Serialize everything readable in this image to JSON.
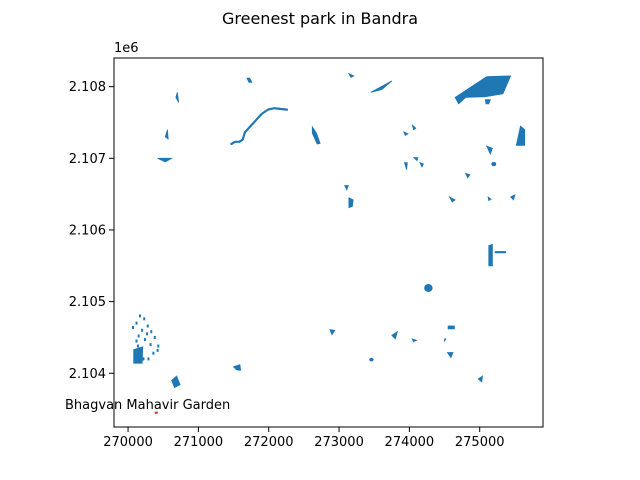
{
  "figure": {
    "title": "Greenest park in Bandra",
    "offset_label": "1e6"
  },
  "colors": {
    "park_fill": "#1f77b4",
    "highlight": "#d62728",
    "axes": "#000000",
    "background": "#ffffff"
  },
  "chart_data": {
    "type": "map",
    "title": "Greenest park in Bandra",
    "crs_units": "metres",
    "xlim": [
      269800,
      275900
    ],
    "ylim": [
      2103250,
      2108400
    ],
    "x_ticks": [
      270000,
      271000,
      272000,
      273000,
      274000,
      275000
    ],
    "x_tick_labels": [
      "270000",
      "271000",
      "272000",
      "273000",
      "274000",
      "275000"
    ],
    "y_ticks": [
      2104000,
      2105000,
      2106000,
      2107000,
      2108000
    ],
    "y_tick_labels": [
      "2.104",
      "2.105",
      "2.106",
      "2.107",
      "2.108"
    ],
    "y_offset_label": "1e6",
    "annotation": {
      "text": "Bhagvan Mahavir Garden",
      "x": 270400,
      "y": 2103450
    },
    "parks": [
      {
        "type": "poly",
        "pts": [
          [
            274650,
            2107850
          ],
          [
            275100,
            2108140
          ],
          [
            275440,
            2108150
          ],
          [
            275330,
            2107900
          ],
          [
            275080,
            2107860
          ],
          [
            274800,
            2107850
          ],
          [
            274700,
            2107760
          ]
        ]
      },
      {
        "type": "poly",
        "pts": [
          [
            273450,
            2107920
          ],
          [
            273750,
            2108080
          ],
          [
            273610,
            2107960
          ]
        ]
      },
      {
        "type": "poly",
        "pts": [
          [
            275520,
            2107180
          ],
          [
            275580,
            2107450
          ],
          [
            275640,
            2107400
          ],
          [
            275640,
            2107180
          ]
        ]
      },
      {
        "type": "poly",
        "pts": [
          [
            275080,
            2107820
          ],
          [
            275150,
            2107820
          ],
          [
            275130,
            2107760
          ],
          [
            275090,
            2107760
          ]
        ]
      },
      {
        "type": "poly",
        "pts": [
          [
            273140,
            2108180
          ],
          [
            273210,
            2108150
          ],
          [
            273170,
            2108130
          ]
        ]
      },
      {
        "type": "poly",
        "pts": [
          [
            271690,
            2108120
          ],
          [
            271730,
            2108120
          ],
          [
            271760,
            2108060
          ],
          [
            271720,
            2108060
          ]
        ]
      },
      {
        "type": "poly",
        "pts": [
          [
            270420,
            2107000
          ],
          [
            270620,
            2107000
          ],
          [
            270530,
            2106950
          ]
        ]
      },
      {
        "type": "poly",
        "pts": [
          [
            270530,
            2107300
          ],
          [
            270560,
            2107400
          ],
          [
            270570,
            2107270
          ]
        ]
      },
      {
        "type": "poly",
        "pts": [
          [
            270680,
            2107850
          ],
          [
            270700,
            2107920
          ],
          [
            270720,
            2107780
          ]
        ]
      },
      {
        "type": "poly",
        "pts": [
          [
            272620,
            2107440
          ],
          [
            272680,
            2107350
          ],
          [
            272730,
            2107210
          ],
          [
            272690,
            2107200
          ],
          [
            272620,
            2107350
          ]
        ]
      },
      {
        "type": "poly",
        "pts": [
          [
            273080,
            2106620
          ],
          [
            273130,
            2106620
          ],
          [
            273110,
            2106560
          ]
        ]
      },
      {
        "type": "poly",
        "pts": [
          [
            273140,
            2106450
          ],
          [
            273200,
            2106420
          ],
          [
            273190,
            2106330
          ],
          [
            273140,
            2106310
          ]
        ]
      },
      {
        "type": "poly",
        "pts": [
          [
            273920,
            2107370
          ],
          [
            273980,
            2107340
          ],
          [
            273940,
            2107320
          ]
        ]
      },
      {
        "type": "poly",
        "pts": [
          [
            274040,
            2107470
          ],
          [
            274090,
            2107420
          ],
          [
            274060,
            2107400
          ]
        ]
      },
      {
        "type": "poly",
        "pts": [
          [
            273930,
            2106940
          ],
          [
            273970,
            2106940
          ],
          [
            273960,
            2106840
          ]
        ]
      },
      {
        "type": "poly",
        "pts": [
          [
            274060,
            2107010
          ],
          [
            274120,
            2107010
          ],
          [
            274110,
            2106970
          ]
        ]
      },
      {
        "type": "poly",
        "pts": [
          [
            274150,
            2106940
          ],
          [
            274200,
            2106920
          ],
          [
            274180,
            2106880
          ]
        ]
      },
      {
        "type": "poly",
        "pts": [
          [
            275100,
            2107170
          ],
          [
            275180,
            2107140
          ],
          [
            275150,
            2107060
          ]
        ]
      },
      {
        "type": "poly",
        "pts": [
          [
            274800,
            2106790
          ],
          [
            274860,
            2106770
          ],
          [
            274830,
            2106730
          ]
        ]
      },
      {
        "type": "poly",
        "pts": [
          [
            274570,
            2106460
          ],
          [
            274650,
            2106420
          ],
          [
            274610,
            2106390
          ]
        ]
      },
      {
        "type": "poly",
        "pts": [
          [
            275120,
            2106460
          ],
          [
            275160,
            2106430
          ],
          [
            275130,
            2106410
          ]
        ]
      },
      {
        "type": "poly",
        "pts": [
          [
            275440,
            2106460
          ],
          [
            275500,
            2106490
          ],
          [
            275480,
            2106420
          ]
        ]
      },
      {
        "type": "poly",
        "pts": [
          [
            275130,
            2105500
          ],
          [
            275180,
            2105500
          ],
          [
            275180,
            2105800
          ],
          [
            275130,
            2105780
          ]
        ]
      },
      {
        "type": "poly",
        "pts": [
          [
            275220,
            2105700
          ],
          [
            275370,
            2105700
          ],
          [
            275370,
            2105680
          ],
          [
            275220,
            2105680
          ]
        ]
      },
      {
        "type": "poly",
        "pts": [
          [
            270080,
            2104330
          ],
          [
            270210,
            2104370
          ],
          [
            270200,
            2104140
          ],
          [
            270080,
            2104140
          ]
        ]
      },
      {
        "type": "poly",
        "pts": [
          [
            270620,
            2103900
          ],
          [
            270690,
            2103960
          ],
          [
            270740,
            2103840
          ],
          [
            270660,
            2103800
          ]
        ]
      },
      {
        "type": "poly",
        "pts": [
          [
            271500,
            2104090
          ],
          [
            271590,
            2104120
          ],
          [
            271600,
            2104040
          ],
          [
            271540,
            2104050
          ]
        ]
      },
      {
        "type": "poly",
        "pts": [
          [
            272870,
            2104610
          ],
          [
            272940,
            2104600
          ],
          [
            272900,
            2104540
          ]
        ]
      },
      {
        "type": "poly",
        "pts": [
          [
            273750,
            2104530
          ],
          [
            273830,
            2104580
          ],
          [
            273800,
            2104480
          ]
        ]
      },
      {
        "type": "poly",
        "pts": [
          [
            274550,
            2104660
          ],
          [
            274640,
            2104660
          ],
          [
            274640,
            2104620
          ],
          [
            274550,
            2104620
          ]
        ]
      },
      {
        "type": "poly",
        "pts": [
          [
            274540,
            2104290
          ],
          [
            274620,
            2104290
          ],
          [
            274590,
            2104220
          ]
        ]
      },
      {
        "type": "poly",
        "pts": [
          [
            274980,
            2103920
          ],
          [
            275040,
            2103960
          ],
          [
            275030,
            2103880
          ]
        ]
      },
      {
        "type": "poly",
        "pts": [
          [
            274040,
            2104480
          ],
          [
            274100,
            2104460
          ],
          [
            274060,
            2104440
          ]
        ]
      },
      {
        "type": "poly",
        "pts": [
          [
            274500,
            2104480
          ],
          [
            274520,
            2104480
          ],
          [
            274500,
            2104450
          ]
        ]
      },
      {
        "type": "circle",
        "cx": 274270,
        "cy": 2105190,
        "rx": 60,
        "ry": 55
      },
      {
        "type": "circle",
        "cx": 275200,
        "cy": 2106920,
        "rx": 35,
        "ry": 30
      },
      {
        "type": "circle",
        "cx": 273460,
        "cy": 2104190,
        "rx": 30,
        "ry": 25
      },
      {
        "type": "circle",
        "cx": 270210,
        "cy": 2104200,
        "rx": 25,
        "ry": 25
      }
    ],
    "paths": [
      {
        "pts": [
          [
            271470,
            2107200
          ],
          [
            271520,
            2107230
          ],
          [
            271580,
            2107230
          ],
          [
            271630,
            2107260
          ],
          [
            271660,
            2107360
          ],
          [
            271780,
            2107490
          ],
          [
            271900,
            2107620
          ],
          [
            271990,
            2107680
          ],
          [
            272080,
            2107700
          ],
          [
            272160,
            2107690
          ],
          [
            272260,
            2107680
          ]
        ],
        "width": 2.2
      }
    ],
    "scatter_specks": [
      [
        270070,
        2104640
      ],
      [
        270120,
        2104700
      ],
      [
        270170,
        2104800
      ],
      [
        270230,
        2104760
      ],
      [
        270280,
        2104660
      ],
      [
        270330,
        2104580
      ],
      [
        270150,
        2104520
      ],
      [
        270240,
        2104470
      ],
      [
        270320,
        2104400
      ],
      [
        270360,
        2104280
      ],
      [
        270290,
        2104200
      ],
      [
        270430,
        2104380
      ],
      [
        270380,
        2104500
      ],
      [
        270120,
        2104450
      ],
      [
        270200,
        2104600
      ],
      [
        270270,
        2104550
      ],
      [
        270420,
        2104320
      ],
      [
        270140,
        2104380
      ]
    ]
  }
}
